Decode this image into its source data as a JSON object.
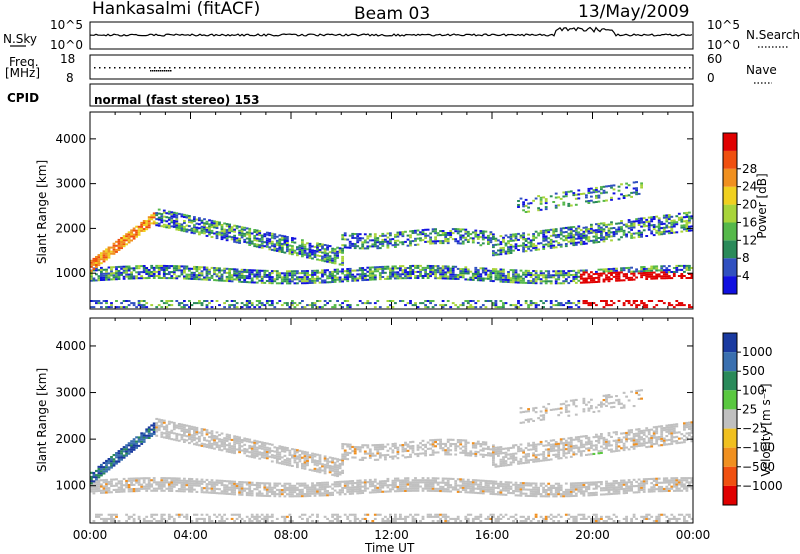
{
  "header": {
    "station": "Hankasalmi (fitACF)",
    "beam": "Beam 03",
    "date": "13/May/2009"
  },
  "nsky_panel": {
    "left_label": "N.Sky",
    "left_ticks": [
      "10^5",
      "10^0"
    ],
    "right_label": "N.Search",
    "right_ticks": [
      "10^5",
      "10^0"
    ]
  },
  "freq_panel": {
    "left_label_1": "Freq.",
    "left_label_2": "[MHz]",
    "left_ticks": [
      "18",
      "8"
    ],
    "right_label": "Nave",
    "right_ticks": [
      "60",
      "0"
    ]
  },
  "cpid_panel": {
    "label": "CPID",
    "text": "normal (fast stereo) 153"
  },
  "time_axis": {
    "title": "Time UT",
    "ticks": [
      "00:00",
      "04:00",
      "08:00",
      "12:00",
      "16:00",
      "20:00",
      "00:00"
    ]
  },
  "chart_data": [
    {
      "type": "heatmap",
      "title": "",
      "xlabel": "Time UT",
      "ylabel": "Slant Range [km]",
      "x_range_hours": [
        0,
        24
      ],
      "ylim_km": [
        200,
        4600
      ],
      "y_ticks": [
        "1000",
        "2000",
        "3000",
        "4000"
      ],
      "colorbar": {
        "label": "Power [dB]",
        "ticks": [
          "4",
          "8",
          "12",
          "16",
          "20",
          "24",
          "28"
        ],
        "colors": [
          "#1010e0",
          "#3050c0",
          "#2a8a5a",
          "#55b84a",
          "#a8d43a",
          "#f0d020",
          "#f09020",
          "#f05010",
          "#e00000"
        ]
      }
    },
    {
      "type": "heatmap",
      "title": "",
      "xlabel": "Time UT",
      "ylabel": "Slant Range [km]",
      "x_range_hours": [
        0,
        24
      ],
      "ylim_km": [
        200,
        4600
      ],
      "y_ticks": [
        "1000",
        "2000",
        "3000",
        "4000"
      ],
      "colorbar": {
        "label": "Velocity [m s⁻¹]",
        "ticks": [
          "1000",
          "500",
          "100",
          "25",
          "−25",
          "−100",
          "−500",
          "−1000"
        ],
        "colors": [
          "#1a3aa0",
          "#3a70b0",
          "#2a8a5a",
          "#5ac840",
          "#c0c0c0",
          "#f0c020",
          "#f09020",
          "#f05010",
          "#e00000"
        ]
      }
    }
  ]
}
